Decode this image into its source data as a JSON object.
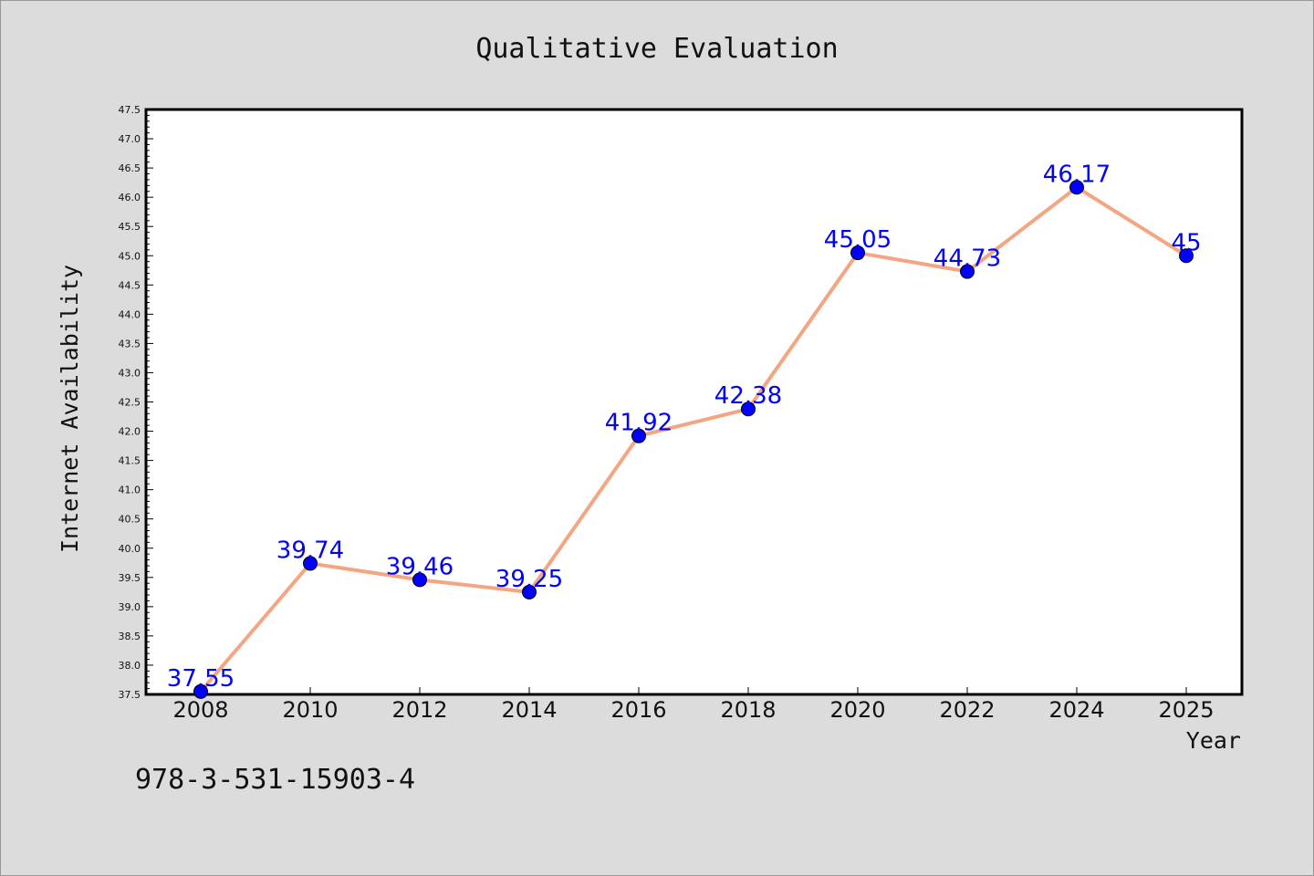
{
  "chart_data": {
    "type": "line",
    "title": "Qualitative Evaluation",
    "xlabel": "Year",
    "ylabel": "Internet Availability",
    "categories": [
      "2008",
      "2010",
      "2012",
      "2014",
      "2016",
      "2018",
      "2020",
      "2022",
      "2024",
      "2025"
    ],
    "series": [
      {
        "values": [
          37.55,
          39.74,
          39.46,
          39.25,
          41.92,
          42.38,
          45.05,
          44.73,
          46.17,
          45
        ],
        "line_color": "#f4a582",
        "marker_color": "#0000ff",
        "label_color": "#0000ff"
      }
    ],
    "ylim": [
      37.5,
      47.5
    ],
    "y_major_step": 0.5,
    "grid": false,
    "legend": "none",
    "plot_background": "#ffffff",
    "figure_background": "#dcdcdc"
  },
  "footer": {
    "text": "978-3-531-15903-4"
  }
}
